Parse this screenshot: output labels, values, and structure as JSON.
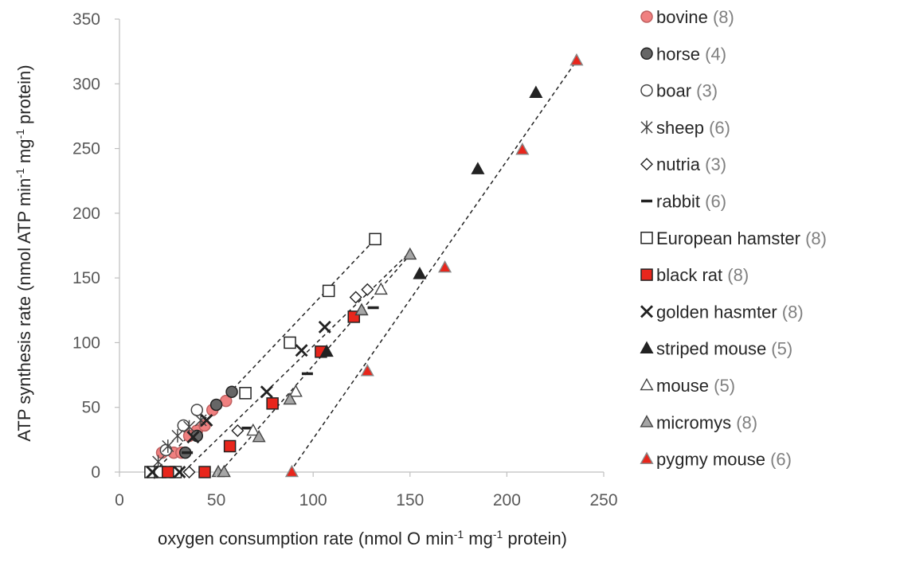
{
  "chart_data": {
    "type": "scatter",
    "xlabel": "oxygen consumption rate (nmol O min-1 mg-1 protein)",
    "xlabel_parts": {
      "a": "oxygen consumption rate (nmol O min",
      "sup1": "-1",
      "b": " mg",
      "sup2": "-1",
      "c": " protein)"
    },
    "ylabel": "ATP synthesis rate (nmol ATP min-1 mg-1 protein)",
    "ylabel_parts": {
      "a": "ATP synthesis rate (nmol ATP min",
      "sup1": "-1",
      "b": " mg",
      "sup2": "-1",
      "c": " protein)"
    },
    "xlim": [
      0,
      250
    ],
    "ylim": [
      0,
      350
    ],
    "xticks": [
      0,
      50,
      100,
      150,
      200,
      250
    ],
    "yticks": [
      0,
      50,
      100,
      150,
      200,
      250,
      300,
      350
    ],
    "grid": false,
    "legend_position": "right",
    "series": [
      {
        "name": "bovine",
        "count": "(8)",
        "marker": "circle",
        "fill": "#f08080",
        "stroke": "#c06060",
        "points": [
          [
            22,
            15
          ],
          [
            28,
            15
          ],
          [
            32,
            15
          ],
          [
            36,
            28
          ],
          [
            40,
            32
          ],
          [
            44,
            36
          ],
          [
            48,
            48
          ],
          [
            55,
            55
          ]
        ]
      },
      {
        "name": "horse",
        "count": "(4)",
        "marker": "circle",
        "fill": "#666666",
        "stroke": "#222222",
        "points": [
          [
            34,
            15
          ],
          [
            40,
            28
          ],
          [
            50,
            52
          ],
          [
            58,
            62
          ]
        ]
      },
      {
        "name": "boar",
        "count": "(3)",
        "marker": "circle",
        "fill": "#ffffff",
        "stroke": "#444444",
        "points": [
          [
            24,
            17
          ],
          [
            33,
            36
          ],
          [
            40,
            48
          ]
        ]
      },
      {
        "name": "sheep",
        "count": "(6)",
        "marker": "star",
        "fill": "none",
        "stroke": "#444444",
        "points": [
          [
            18,
            0
          ],
          [
            20,
            8
          ],
          [
            25,
            20
          ],
          [
            30,
            28
          ],
          [
            36,
            35
          ],
          [
            42,
            40
          ]
        ]
      },
      {
        "name": "nutria",
        "count": "(3)",
        "marker": "diamond",
        "fill": "#ffffff",
        "stroke": "#222222",
        "points": [
          [
            36,
            0
          ],
          [
            61,
            32
          ],
          [
            122,
            135
          ],
          [
            128,
            141
          ]
        ]
      },
      {
        "name": "rabbit",
        "count": "(6)",
        "marker": "dash",
        "fill": "none",
        "stroke": "#222222",
        "points": [
          [
            23,
            0
          ],
          [
            27,
            0
          ],
          [
            35,
            15
          ],
          [
            66,
            34
          ],
          [
            97,
            76
          ],
          [
            131,
            127
          ]
        ]
      },
      {
        "name": "European hamster",
        "count": "(8)",
        "marker": "square",
        "fill": "#ffffff",
        "stroke": "#222222",
        "points": [
          [
            16,
            0
          ],
          [
            21,
            0
          ],
          [
            29,
            0
          ],
          [
            65,
            61
          ],
          [
            88,
            100
          ],
          [
            108,
            140
          ],
          [
            132,
            180
          ]
        ]
      },
      {
        "name": "black rat",
        "count": "(8)",
        "marker": "square",
        "fill": "#e8261c",
        "stroke": "#222222",
        "points": [
          [
            25,
            0
          ],
          [
            44,
            0
          ],
          [
            57,
            20
          ],
          [
            79,
            53
          ],
          [
            104,
            93
          ],
          [
            121,
            120
          ]
        ]
      },
      {
        "name": "golden hasmter",
        "count": "(8)",
        "marker": "x",
        "fill": "none",
        "stroke": "#222222",
        "points": [
          [
            17,
            0
          ],
          [
            31,
            0
          ],
          [
            38,
            27
          ],
          [
            45,
            40
          ],
          [
            76,
            62
          ],
          [
            94,
            94
          ],
          [
            106,
            112
          ]
        ]
      },
      {
        "name": "striped mouse",
        "count": "(5)",
        "marker": "triangle",
        "fill": "#222222",
        "stroke": "#222222",
        "points": [
          [
            107,
            93
          ],
          [
            155,
            153
          ],
          [
            185,
            234
          ],
          [
            215,
            293
          ]
        ]
      },
      {
        "name": "mouse",
        "count": "(5)",
        "marker": "triangle",
        "fill": "#ffffff",
        "stroke": "#444444",
        "points": [
          [
            69,
            32
          ],
          [
            91,
            62
          ],
          [
            125,
            125
          ],
          [
            135,
            141
          ]
        ]
      },
      {
        "name": "micromys",
        "count": "(8)",
        "marker": "triangle",
        "fill": "#a6a6a6",
        "stroke": "#444444",
        "points": [
          [
            51,
            0
          ],
          [
            54,
            0
          ],
          [
            72,
            27
          ],
          [
            88,
            56
          ],
          [
            125,
            125
          ],
          [
            150,
            168
          ]
        ]
      },
      {
        "name": "pygmy mouse",
        "count": "(6)",
        "marker": "triangle",
        "fill": "#e8261c",
        "stroke": "#888888",
        "points": [
          [
            89,
            0
          ],
          [
            128,
            78
          ],
          [
            168,
            158
          ],
          [
            208,
            249
          ],
          [
            236,
            318
          ]
        ]
      }
    ],
    "trend_lines": [
      [
        [
          18,
          0
        ],
        [
          132,
          180
        ]
      ],
      [
        [
          33,
          0
        ],
        [
          150,
          170
        ]
      ],
      [
        [
          52,
          0
        ],
        [
          150,
          168
        ]
      ],
      [
        [
          88,
          0
        ],
        [
          237,
          320
        ]
      ]
    ]
  }
}
